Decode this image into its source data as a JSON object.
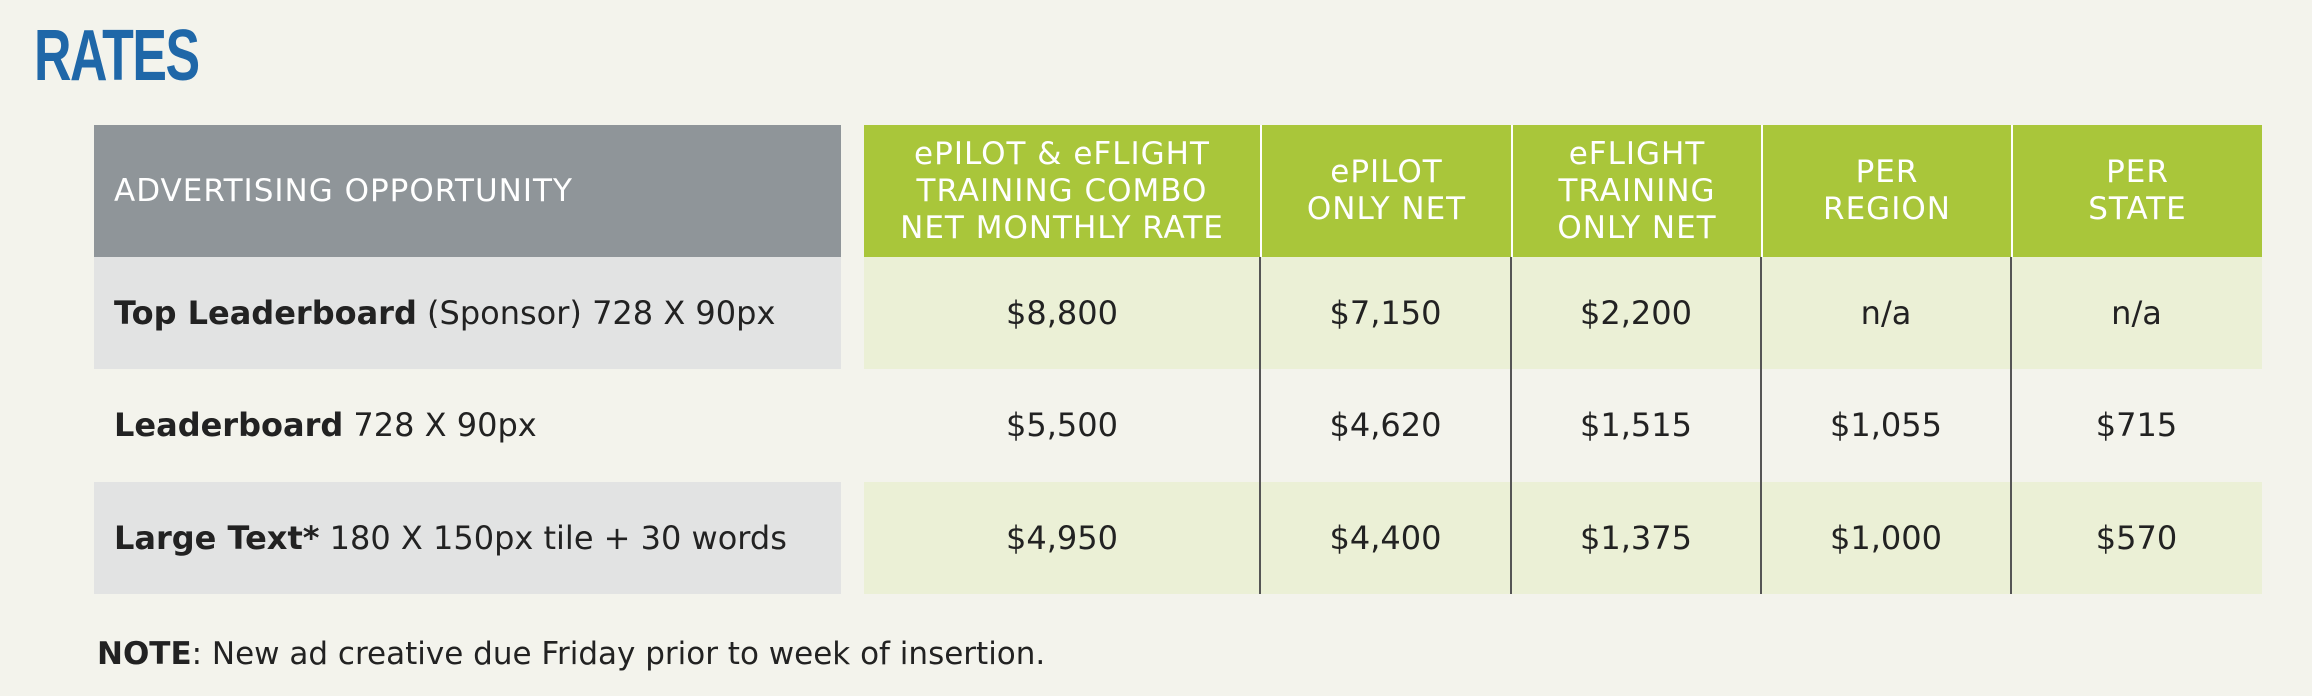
{
  "title": "RATES",
  "table": {
    "left_header": "ADVERTISING OPPORTUNITY",
    "column_headers": [
      [
        "ePILOT & eFLIGHT",
        "TRAINING COMBO",
        "NET MONTHLY RATE"
      ],
      [
        "ePILOT",
        "ONLY NET"
      ],
      [
        "eFLIGHT",
        "TRAINING",
        "ONLY NET"
      ],
      [
        "PER",
        "REGION"
      ],
      [
        "PER",
        "STATE"
      ]
    ],
    "rows": [
      {
        "bold": "Top Leaderboard",
        "rest": " (Sponsor) 728 X 90px",
        "values": [
          "$8,800",
          "$7,150",
          "$2,200",
          "n/a",
          "n/a"
        ]
      },
      {
        "bold": "Leaderboard",
        "rest": " 728 X 90px",
        "values": [
          "$5,500",
          "$4,620",
          "$1,515",
          "$1,055",
          "$715"
        ]
      },
      {
        "bold": "Large Text*",
        "rest": " 180 X 150px tile + 30 words",
        "values": [
          "$4,950",
          "$4,400",
          "$1,375",
          "$1,000",
          "$570"
        ]
      }
    ]
  },
  "note": {
    "label": "NOTE",
    "text": ": New ad creative due Friday prior to week of insertion."
  },
  "colors": {
    "title": "#1f67a8",
    "header_grey": "#8f9599",
    "header_green": "#a9c63a",
    "row_tint": "#ebf0d6",
    "row_grey": "#e2e3e3"
  }
}
